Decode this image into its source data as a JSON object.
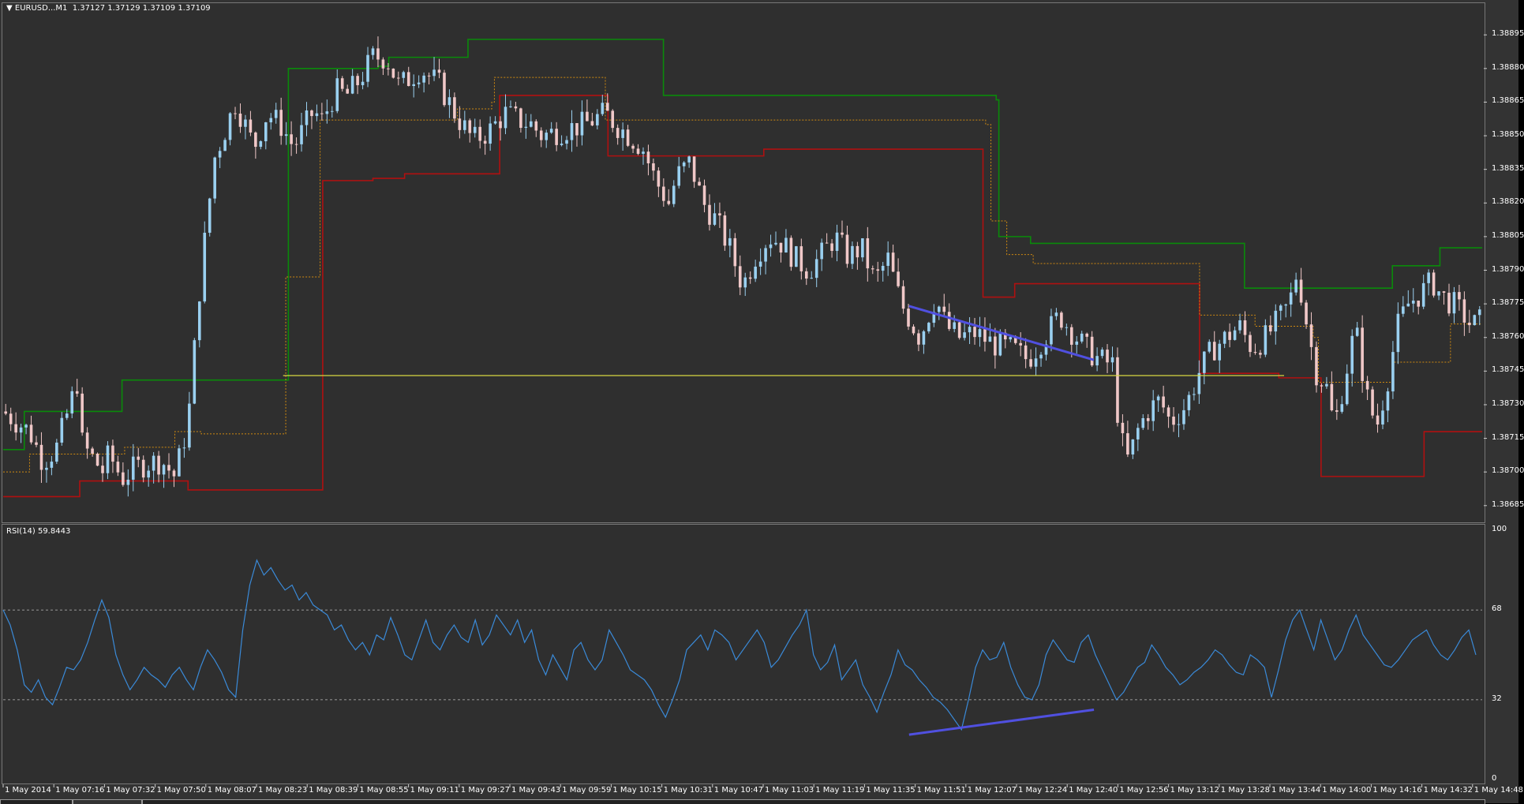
{
  "window": {
    "title_arrow": "▼",
    "title": "EURUSD...M1  1.37127 1.37129 1.37109 1.37109"
  },
  "rsi_title": "RSI(14) 59.8443",
  "colors": {
    "background": "#2f2f2f",
    "bull_candle": "#9ad0f0",
    "bear_candle": "#f0c8c8",
    "upper_band": "#0a8a0a",
    "lower_band": "#b01010",
    "mid_band": "#d08a10",
    "support_line": "#d8d840",
    "trend_line": "#5050e0",
    "rsi_line": "#3a8ad8"
  },
  "chart_data": [
    {
      "type": "candlestick",
      "symbol": "EURUSD",
      "timeframe": "M1",
      "ohlc_last": {
        "open": 1.37127,
        "high": 1.37129,
        "low": 1.37109,
        "close": 1.37109
      },
      "y_ticks": [
        "1.38895",
        "1.38880",
        "1.38865",
        "1.38850",
        "1.38835",
        "1.38820",
        "1.38805",
        "1.38790",
        "1.38775",
        "1.38760",
        "1.38745",
        "1.38730",
        "1.38715",
        "1.38700",
        "1.38685"
      ],
      "ylim": [
        1.3868,
        1.389
      ],
      "x_ticks": [
        "1 May 2014",
        "1 May 07:16",
        "1 May 07:32",
        "1 May 07:50",
        "1 May 08:07",
        "1 May 08:23",
        "1 May 08:39",
        "1 May 08:55",
        "1 May 09:11",
        "1 May 09:27",
        "1 May 09:43",
        "1 May 09:59",
        "1 May 10:15",
        "1 May 10:31",
        "1 May 10:47",
        "1 May 11:03",
        "1 May 11:19",
        "1 May 11:35",
        "1 May 11:51",
        "1 May 12:07",
        "1 May 12:24",
        "1 May 12:40",
        "1 May 12:56",
        "1 May 13:12",
        "1 May 13:28",
        "1 May 13:44",
        "1 May 14:00",
        "1 May 14:16",
        "1 May 14:32",
        "1 May 14:48"
      ],
      "close_path": [
        [
          0,
          1.38727
        ],
        [
          1,
          1.38718
        ],
        [
          1.5,
          1.38705
        ],
        [
          2,
          1.3871
        ],
        [
          2.8,
          1.3874
        ],
        [
          3,
          1.38712
        ],
        [
          3.8,
          1.387
        ],
        [
          4,
          1.38708
        ],
        [
          4.5,
          1.38697
        ],
        [
          5,
          1.38702
        ],
        [
          5.5,
          1.38704
        ],
        [
          6,
          1.38705
        ],
        [
          6.5,
          1.38698
        ],
        [
          7,
          1.38722
        ],
        [
          7.5,
          1.3879
        ],
        [
          8,
          1.3884
        ],
        [
          8.8,
          1.38865
        ],
        [
          9.5,
          1.38845
        ],
        [
          10,
          1.3886
        ],
        [
          10.5,
          1.38855
        ],
        [
          11,
          1.38845
        ],
        [
          11.8,
          1.38862
        ],
        [
          12,
          1.38855
        ],
        [
          12.6,
          1.3887
        ],
        [
          13,
          1.38868
        ],
        [
          13.5,
          1.38875
        ],
        [
          14,
          1.38885
        ],
        [
          14.5,
          1.38885
        ],
        [
          15,
          1.38872
        ],
        [
          15.8,
          1.3888
        ],
        [
          16.5,
          1.38873
        ],
        [
          17.2,
          1.38858
        ],
        [
          17.8,
          1.38848
        ],
        [
          18.4,
          1.38852
        ],
        [
          19,
          1.3886
        ],
        [
          19.5,
          1.38857
        ],
        [
          20,
          1.38855
        ],
        [
          20.4,
          1.3885
        ],
        [
          21,
          1.38852
        ],
        [
          22,
          1.38855
        ],
        [
          22.8,
          1.3886
        ],
        [
          23.2,
          1.38855
        ],
        [
          23.7,
          1.3885
        ],
        [
          24.2,
          1.38845
        ],
        [
          24.7,
          1.3883
        ],
        [
          25.2,
          1.3882
        ],
        [
          25.5,
          1.38832
        ],
        [
          26,
          1.38838
        ],
        [
          26.5,
          1.3882
        ],
        [
          27,
          1.38812
        ],
        [
          27.5,
          1.388
        ],
        [
          28,
          1.38783
        ],
        [
          28.5,
          1.38797
        ],
        [
          29,
          1.38805
        ],
        [
          29.5,
          1.38802
        ],
        [
          30,
          1.38795
        ],
        [
          30.5,
          1.3879
        ],
        [
          31,
          1.38797
        ],
        [
          31.5,
          1.38805
        ],
        [
          32,
          1.38796
        ],
        [
          32.5,
          1.388
        ],
        [
          33,
          1.38785
        ],
        [
          33.5,
          1.38795
        ],
        [
          34,
          1.38775
        ],
        [
          34.7,
          1.3876
        ],
        [
          35.3,
          1.38778
        ],
        [
          35.7,
          1.38765
        ],
        [
          36.2,
          1.3876
        ],
        [
          36.8,
          1.38762
        ],
        [
          37.5,
          1.38757
        ],
        [
          38.2,
          1.38755
        ],
        [
          38.8,
          1.3875
        ],
        [
          39.4,
          1.3876
        ],
        [
          40,
          1.3877
        ],
        [
          40.5,
          1.38762
        ],
        [
          41,
          1.38755
        ],
        [
          41.5,
          1.3875
        ],
        [
          42,
          1.38748
        ],
        [
          42.3,
          1.38715
        ],
        [
          42.6,
          1.38705
        ],
        [
          43,
          1.3872
        ],
        [
          43.4,
          1.38728
        ],
        [
          43.8,
          1.38732
        ],
        [
          44.2,
          1.38722
        ],
        [
          44.8,
          1.3873
        ],
        [
          45.3,
          1.38745
        ],
        [
          45.8,
          1.38755
        ],
        [
          46.3,
          1.3876
        ],
        [
          46.8,
          1.38765
        ],
        [
          47.3,
          1.38755
        ],
        [
          47.8,
          1.3876
        ],
        [
          48.3,
          1.38768
        ],
        [
          48.7,
          1.38775
        ],
        [
          49,
          1.3879
        ],
        [
          49.3,
          1.3877
        ],
        [
          49.7,
          1.38745
        ],
        [
          50.1,
          1.38738
        ],
        [
          50.4,
          1.3872
        ],
        [
          50.8,
          1.38742
        ],
        [
          51.2,
          1.38765
        ],
        [
          51.6,
          1.38735
        ],
        [
          52,
          1.3872
        ],
        [
          52.4,
          1.3874
        ],
        [
          52.8,
          1.38765
        ],
        [
          53.2,
          1.38775
        ],
        [
          53.7,
          1.3878
        ],
        [
          54.1,
          1.38785
        ],
        [
          54.5,
          1.38778
        ],
        [
          54.9,
          1.38775
        ],
        [
          55.3,
          1.3877
        ],
        [
          55.6,
          1.38765
        ],
        [
          56,
          1.38768
        ]
      ],
      "series": [
        {
          "name": "",
          "type": "step",
          "style": "solid",
          "role": "upper",
          "steps": [
            [
              0,
              1.3871
            ],
            [
              0.8,
              1.38727
            ],
            [
              4.3,
              1.38727
            ],
            [
              4.5,
              1.38741
            ],
            [
              10.7,
              1.38741
            ],
            [
              10.8,
              1.3888
            ],
            [
              14.2,
              1.38881
            ],
            [
              14.6,
              1.38885
            ],
            [
              17.5,
              1.38885
            ],
            [
              17.6,
              1.38893
            ],
            [
              24.9,
              1.38893
            ],
            [
              25,
              1.38868
            ],
            [
              37.6,
              1.38866
            ],
            [
              37.7,
              1.38805
            ],
            [
              38.9,
              1.38802
            ],
            [
              46.7,
              1.38802
            ],
            [
              47,
              1.38782
            ],
            [
              52.3,
              1.38782
            ],
            [
              52.6,
              1.38792
            ],
            [
              54.2,
              1.38792
            ],
            [
              54.4,
              1.388
            ],
            [
              56,
              1.388
            ]
          ]
        },
        {
          "name": "",
          "type": "step",
          "style": "solid",
          "role": "lower",
          "steps": [
            [
              0,
              1.38689
            ],
            [
              2.8,
              1.38689
            ],
            [
              2.9,
              1.38696
            ],
            [
              6.8,
              1.38696
            ],
            [
              7,
              1.38692
            ],
            [
              12,
              1.38692
            ],
            [
              12.1,
              1.3883
            ],
            [
              14,
              1.38831
            ],
            [
              15.2,
              1.38833
            ],
            [
              18.7,
              1.38833
            ],
            [
              18.8,
              1.38868
            ],
            [
              22.8,
              1.38868
            ],
            [
              22.9,
              1.38841
            ],
            [
              28.8,
              1.38844
            ],
            [
              37,
              1.38844
            ],
            [
              37.1,
              1.38778
            ],
            [
              38.2,
              1.38778
            ],
            [
              38.3,
              1.38784
            ],
            [
              45.2,
              1.38784
            ],
            [
              45.3,
              1.38744
            ],
            [
              48.2,
              1.38744
            ],
            [
              48.3,
              1.38742
            ],
            [
              49.8,
              1.38742
            ],
            [
              49.9,
              1.38698
            ],
            [
              53.7,
              1.38698
            ],
            [
              53.8,
              1.38718
            ],
            [
              56,
              1.38718
            ]
          ]
        },
        {
          "name": "",
          "type": "step",
          "style": "dotted",
          "role": "middle",
          "steps": [
            [
              0,
              1.387
            ],
            [
              1,
              1.38708
            ],
            [
              4.6,
              1.38711
            ],
            [
              6.5,
              1.38718
            ],
            [
              7.5,
              1.38717
            ],
            [
              10.6,
              1.38717
            ],
            [
              10.7,
              1.38787
            ],
            [
              11.9,
              1.38787
            ],
            [
              12,
              1.38857
            ],
            [
              16,
              1.38857
            ],
            [
              17.2,
              1.38862
            ],
            [
              18.5,
              1.38865
            ],
            [
              18.6,
              1.38876
            ],
            [
              22.6,
              1.38876
            ],
            [
              22.8,
              1.38857
            ],
            [
              37.2,
              1.38855
            ],
            [
              37.4,
              1.38812
            ],
            [
              38,
              1.38797
            ],
            [
              39,
              1.38793
            ],
            [
              45.1,
              1.38793
            ],
            [
              45.3,
              1.3877
            ],
            [
              47.4,
              1.38765
            ],
            [
              49.6,
              1.3876
            ],
            [
              49.8,
              1.3874
            ],
            [
              52.5,
              1.3874
            ],
            [
              52.6,
              1.38749
            ],
            [
              54.8,
              1.38766
            ],
            [
              56,
              1.38766
            ]
          ]
        },
        {
          "name": "",
          "type": "hline",
          "role": "support",
          "y": 1.38743,
          "x_range": [
            10.6,
            48.5
          ]
        },
        {
          "name": "",
          "type": "trendline",
          "role": "price-divergence",
          "points": [
            [
              34.3,
              1.38774
            ],
            [
              41.3,
              1.3875
            ]
          ]
        }
      ]
    },
    {
      "type": "line",
      "indicator": "RSI(14)",
      "current_value": 59.8443,
      "ylim": [
        0,
        100
      ],
      "y_ticks": [
        "100",
        "68",
        "32",
        "0"
      ],
      "levels": [
        68,
        32
      ],
      "values": [
        68,
        62,
        52,
        38,
        35,
        40,
        33,
        30,
        37,
        45,
        44,
        48,
        55,
        64,
        72,
        65,
        50,
        42,
        36,
        40,
        45,
        42,
        40,
        37,
        42,
        45,
        40,
        36,
        45,
        52,
        48,
        43,
        36,
        33,
        60,
        78,
        88,
        82,
        85,
        80,
        76,
        78,
        72,
        75,
        70,
        68,
        66,
        60,
        62,
        56,
        52,
        55,
        50,
        58,
        56,
        65,
        58,
        50,
        48,
        56,
        64,
        55,
        52,
        58,
        62,
        57,
        55,
        64,
        54,
        58,
        66,
        62,
        58,
        64,
        55,
        60,
        48,
        42,
        50,
        45,
        40,
        52,
        55,
        48,
        44,
        48,
        60,
        55,
        50,
        44,
        42,
        40,
        36,
        30,
        25,
        32,
        40,
        52,
        55,
        58,
        52,
        60,
        58,
        55,
        48,
        52,
        56,
        60,
        55,
        45,
        48,
        53,
        58,
        62,
        68,
        50,
        44,
        47,
        54,
        40,
        44,
        48,
        38,
        33,
        27,
        35,
        42,
        52,
        46,
        44,
        40,
        37,
        33,
        31,
        28,
        24,
        20,
        32,
        45,
        52,
        48,
        49,
        55,
        45,
        38,
        33,
        32,
        38,
        50,
        56,
        52,
        48,
        47,
        55,
        58,
        50,
        44,
        38,
        32,
        35,
        40,
        45,
        47,
        54,
        50,
        45,
        42,
        38,
        40,
        43,
        45,
        48,
        52,
        50,
        46,
        43,
        42,
        50,
        48,
        45,
        33,
        44,
        56,
        64,
        68,
        60,
        52,
        64,
        56,
        48,
        52,
        60,
        66,
        58,
        54,
        50,
        46,
        45,
        48,
        52,
        56,
        58,
        60,
        54,
        50,
        48,
        52,
        57,
        60,
        50
      ]
    }
  ],
  "annotation_rsi_trendline": {
    "points": [
      [
        34.3,
        18
      ],
      [
        41.3,
        28
      ]
    ]
  }
}
